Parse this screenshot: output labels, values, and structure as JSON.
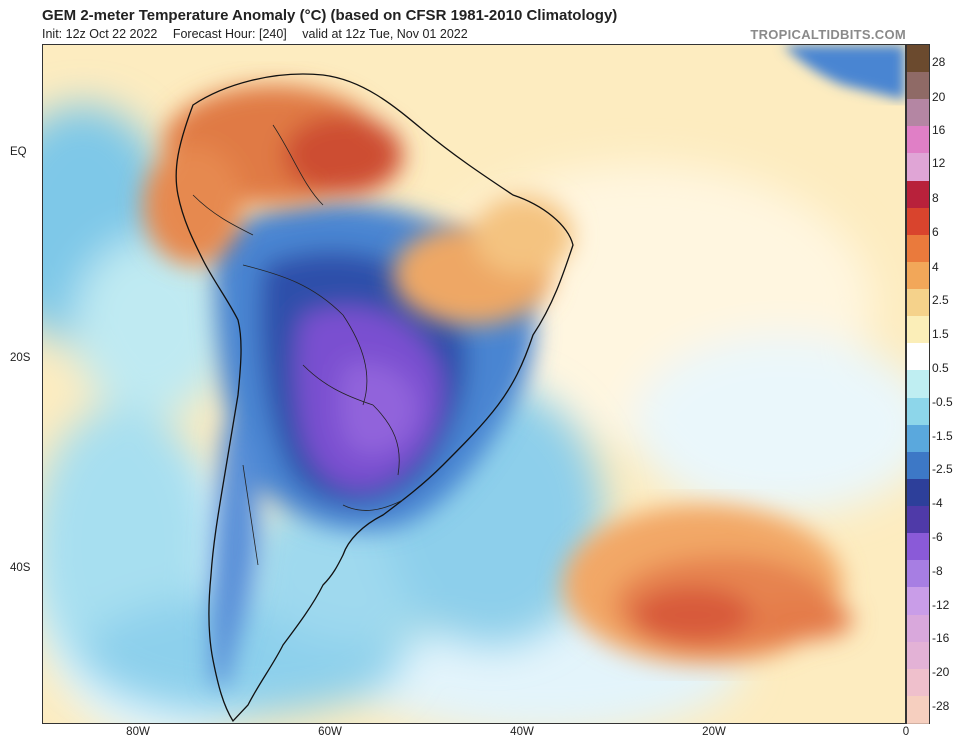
{
  "header": {
    "title": "GEM 2-meter Temperature Anomaly (°C) (based on CFSR 1981-2010 Climatology)",
    "init": "Init: 12z Oct 22 2022",
    "forecast_hour": "Forecast Hour: [240]",
    "valid": "valid at 12z Tue, Nov 01 2022",
    "brand": "TROPICALTIDBITS.COM"
  },
  "map": {
    "lat_labels": [
      "EQ",
      "20S",
      "40S"
    ],
    "lon_labels": [
      "80W",
      "60W",
      "40W",
      "20W",
      "0"
    ]
  },
  "colorbar": {
    "labels": [
      "28",
      "20",
      "16",
      "12",
      "8",
      "6",
      "4",
      "2.5",
      "1.5",
      "0.5",
      "-0.5",
      "-1.5",
      "-2.5",
      "-4",
      "-6",
      "-8",
      "-12",
      "-16",
      "-20",
      "-28"
    ],
    "colors": [
      "#6b4a2e",
      "#8f6a66",
      "#b486a3",
      "#e07fc6",
      "#e0a5d6",
      "#b8213b",
      "#d9442d",
      "#ea7a3c",
      "#f2a759",
      "#f5d28b",
      "#fbeeb8",
      "#ffffff",
      "#bfeef2",
      "#8dd6ea",
      "#5aa8dd",
      "#3d78c6",
      "#2d3f9a",
      "#4f3aa8",
      "#8a5ad8",
      "#a77ee3",
      "#c99de8",
      "#d9a8dc",
      "#e3b2d6",
      "#efc0cc",
      "#f6cfbf"
    ]
  }
}
